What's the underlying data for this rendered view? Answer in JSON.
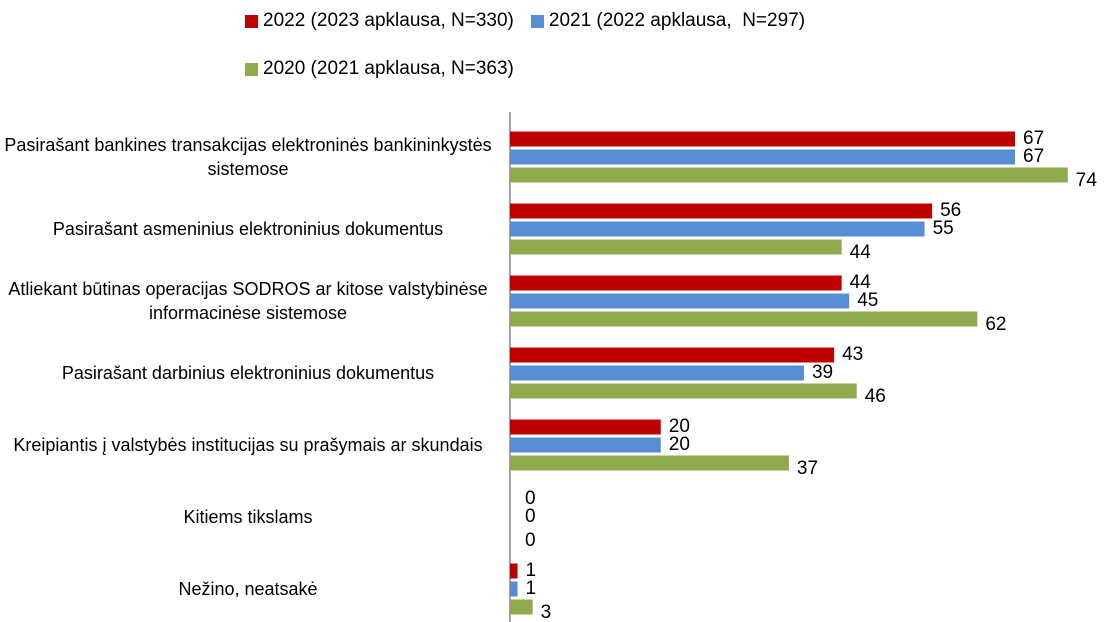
{
  "chart_data": {
    "type": "bar",
    "orientation": "horizontal",
    "categories": [
      "Pasirašant bankines transakcijas elektroninės bankininkystės sistemose",
      "Pasirašant asmeninius elektroninius dokumentus",
      "Atliekant būtinas operacijas SODROS ar kitose valstybinėse informacinėse sistemose",
      "Pasirašant darbinius elektroninius dokumentus",
      "Kreipiantis į valstybės institucijas su prašymais ar skundais",
      "Kitiems tikslams",
      "Nežino, neatsakė"
    ],
    "series": [
      {
        "name": "2022 (2023 apklausa, N=330)",
        "color": "#c00000",
        "values": [
          67,
          56,
          44,
          43,
          20,
          0,
          1
        ]
      },
      {
        "name": "2021 (2022 apklausa,  N=297)",
        "color": "#558ed5",
        "values": [
          67,
          55,
          45,
          39,
          20,
          0,
          1
        ]
      },
      {
        "name": "2020 (2021 apklausa, N=363)",
        "color": "#8eaa4c",
        "values": [
          74,
          44,
          62,
          46,
          37,
          0,
          3
        ]
      }
    ],
    "xlim": [
      0,
      80
    ]
  }
}
